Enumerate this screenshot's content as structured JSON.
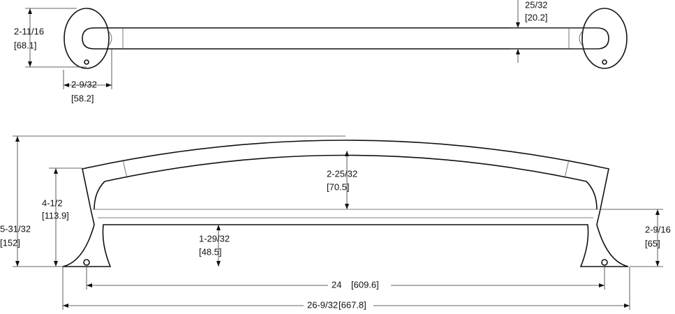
{
  "top_view": {
    "height": {
      "label": "2-11/16",
      "metric": "[68.1]"
    },
    "depth": {
      "label": "2-9/32",
      "metric": "[58.2]"
    },
    "bar_diameter": {
      "label": "25/32",
      "metric": "[20.2]"
    }
  },
  "side_view": {
    "overall_height": {
      "label": "5-31/32",
      "metric": "[152]"
    },
    "mount_height": {
      "label": "4-1/2",
      "metric": "[113.9]"
    },
    "arch_clearance": {
      "label": "2-25/32",
      "metric": "[70.5]"
    },
    "bar_clearance": {
      "label": "1-29/32",
      "metric": "[48.5]"
    },
    "projection": {
      "label": "2-9/16",
      "metric": "[65]"
    },
    "center_to_center": {
      "label": "24",
      "metric": "[609.6]"
    },
    "overall_length": {
      "label": "26-9/32",
      "metric": "[667.8]"
    }
  }
}
